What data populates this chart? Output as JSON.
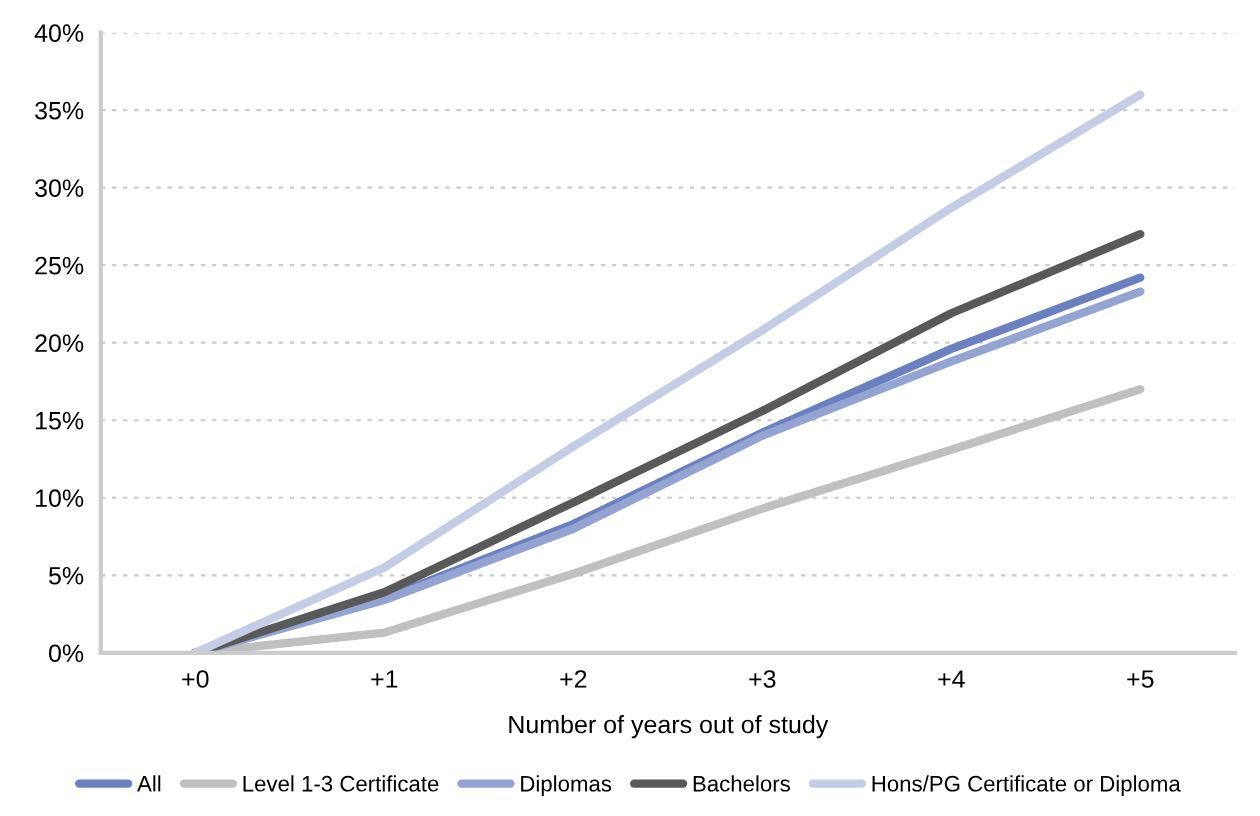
{
  "chart_data": {
    "type": "line",
    "xlabel": "Number of years out of study",
    "categories": [
      "+0",
      "+1",
      "+2",
      "+3",
      "+4",
      "+5"
    ],
    "series": [
      {
        "name": "All",
        "color": "#6a80c0",
        "values": [
          0,
          3.5,
          8.3,
          14.2,
          19.6,
          24.2
        ]
      },
      {
        "name": "Level 1-3 Certificate",
        "color": "#c0c0c0",
        "values": [
          0,
          1.3,
          5.1,
          9.3,
          13.1,
          17.0
        ]
      },
      {
        "name": "Diplomas",
        "color": "#93a3d2",
        "values": [
          0,
          3.4,
          8.0,
          14.0,
          18.8,
          23.3
        ]
      },
      {
        "name": "Bachelors",
        "color": "#595959",
        "values": [
          0,
          3.9,
          9.7,
          15.6,
          21.9,
          27.0
        ]
      },
      {
        "name": "Hons/PG Certificate or Diploma",
        "color": "#c5cde6",
        "values": [
          0,
          5.5,
          13.3,
          20.8,
          28.7,
          36.0
        ]
      }
    ],
    "ylim": [
      0,
      40
    ],
    "yticks": [
      {
        "value": 0,
        "label": "0%"
      },
      {
        "value": 5,
        "label": "5%"
      },
      {
        "value": 10,
        "label": "10%"
      },
      {
        "value": 15,
        "label": "15%"
      },
      {
        "value": 20,
        "label": "20%"
      },
      {
        "value": 25,
        "label": "25%"
      },
      {
        "value": 30,
        "label": "30%"
      },
      {
        "value": 35,
        "label": "35%"
      },
      {
        "value": 40,
        "label": "40%"
      }
    ],
    "grid": "y",
    "legend": "bottom",
    "marker": "none",
    "line_style": "solid"
  }
}
